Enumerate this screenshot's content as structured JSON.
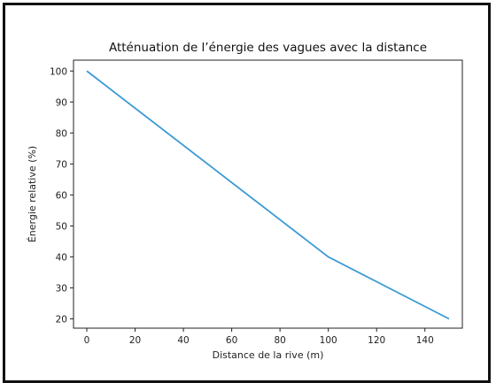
{
  "chart_data": {
    "type": "line",
    "title": "Atténuation de l’énergie des vagues avec la distance",
    "xlabel": "Distance de la rive (m)",
    "ylabel": "Énergie relative (%)",
    "x": [
      0,
      100,
      150
    ],
    "series": [
      {
        "values": [
          100,
          40,
          20
        ],
        "color": "#3a9ad5"
      }
    ],
    "xlim": [
      -5.5,
      155.5
    ],
    "ylim": [
      17,
      103.5
    ],
    "xticks": [
      0,
      20,
      40,
      60,
      80,
      100,
      120,
      140
    ],
    "yticks": [
      20,
      30,
      40,
      50,
      60,
      70,
      80,
      90,
      100
    ],
    "grid": false
  }
}
